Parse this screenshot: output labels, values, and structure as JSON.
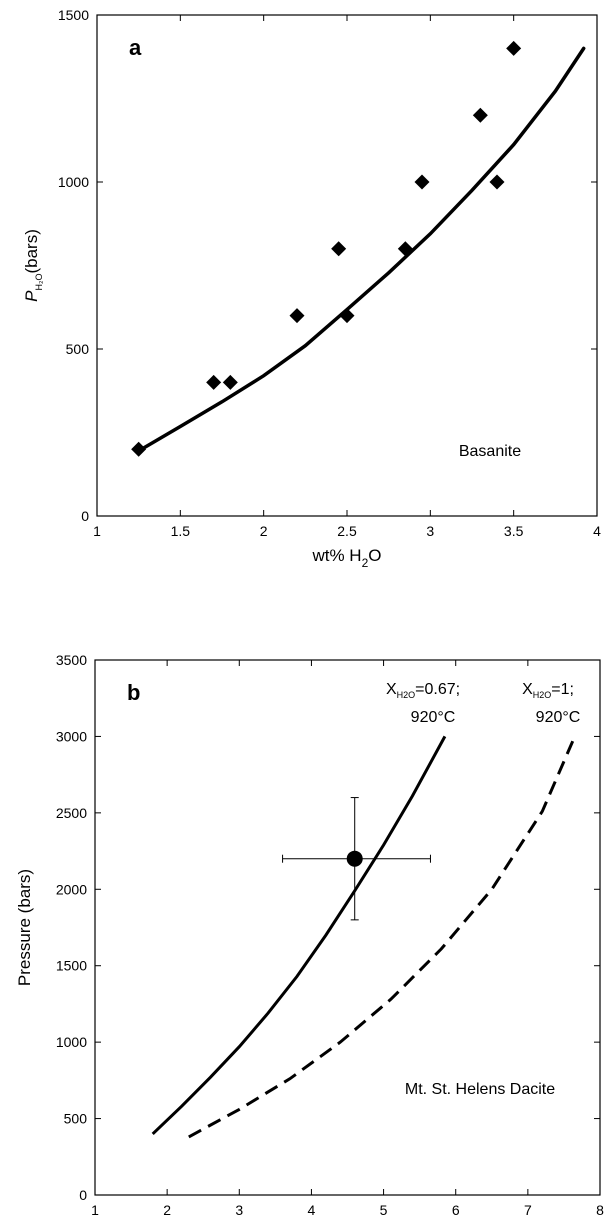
{
  "chart_data": [
    {
      "type": "scatter",
      "panel_label": "a",
      "annotation": "Basanite",
      "xlabel": {
        "main": "wt% H",
        "sub": "2",
        "tail": "O"
      },
      "ylabel": {
        "main": "P",
        "sub": "H₂O",
        "tail": "(bars)"
      },
      "xlim": [
        1,
        4
      ],
      "ylim": [
        0,
        1500
      ],
      "x_ticks": [
        "1",
        "1.5",
        "2",
        "2.5",
        "3",
        "3.5",
        "4"
      ],
      "y_ticks": [
        "0",
        "500",
        "1000",
        "1500"
      ],
      "x_tick_values": [
        1,
        1.5,
        2,
        2.5,
        3,
        3.5,
        4
      ],
      "y_tick_values": [
        0,
        500,
        1000,
        1500
      ],
      "points": [
        {
          "x": 1.25,
          "y": 200
        },
        {
          "x": 1.7,
          "y": 400
        },
        {
          "x": 1.8,
          "y": 400
        },
        {
          "x": 2.2,
          "y": 600
        },
        {
          "x": 2.45,
          "y": 800
        },
        {
          "x": 2.5,
          "y": 600
        },
        {
          "x": 2.85,
          "y": 800
        },
        {
          "x": 2.95,
          "y": 1000
        },
        {
          "x": 3.3,
          "y": 1200
        },
        {
          "x": 3.4,
          "y": 1000
        },
        {
          "x": 3.5,
          "y": 1400
        }
      ],
      "fit_curve": {
        "x": [
          1.25,
          1.5,
          1.75,
          2.0,
          2.25,
          2.5,
          2.75,
          3.0,
          3.25,
          3.5,
          3.75,
          3.92
        ],
        "y": [
          195,
          268,
          342,
          420,
          510,
          618,
          728,
          845,
          975,
          1112,
          1272,
          1400
        ]
      }
    },
    {
      "type": "line",
      "panel_label": "b",
      "annotation": "Mt. St. Helens Dacite",
      "xlabel": {
        "main": "wt% H",
        "sub": "2",
        "tail": "O"
      },
      "ylabel": "Pressure  (bars)",
      "xlim": [
        1,
        8
      ],
      "ylim": [
        0,
        3500
      ],
      "x_ticks": [
        "1",
        "2",
        "3",
        "4",
        "5",
        "6",
        "7",
        "8"
      ],
      "y_ticks": [
        "0",
        "500",
        "1000",
        "1500",
        "2000",
        "2500",
        "3000",
        "3500"
      ],
      "x_tick_values": [
        1,
        2,
        3,
        4,
        5,
        6,
        7,
        8
      ],
      "y_tick_values": [
        0,
        500,
        1000,
        1500,
        2000,
        2500,
        3000,
        3500
      ],
      "series": [
        {
          "label_main": "X",
          "label_sub": "H2O",
          "label_tail": "=0.67;",
          "label_line2": "920°C",
          "style": "solid",
          "x": [
            1.8,
            2.2,
            2.6,
            3.0,
            3.4,
            3.8,
            4.2,
            4.6,
            5.0,
            5.4,
            5.85
          ],
          "y": [
            400,
            580,
            770,
            970,
            1190,
            1430,
            1700,
            1990,
            2290,
            2610,
            3000
          ]
        },
        {
          "label_main": "X",
          "label_sub": "H2O",
          "label_tail": "=1;",
          "label_line2": "920°C",
          "style": "dashed",
          "x": [
            2.3,
            3.0,
            3.7,
            4.4,
            5.1,
            5.8,
            6.5,
            7.2,
            7.65
          ],
          "y": [
            380,
            560,
            760,
            1000,
            1280,
            1610,
            2000,
            2510,
            3000
          ]
        }
      ],
      "measurement": {
        "x": 4.6,
        "y": 2200,
        "x_err": [
          3.6,
          5.65
        ],
        "y_err": [
          1800,
          2600
        ]
      }
    }
  ]
}
